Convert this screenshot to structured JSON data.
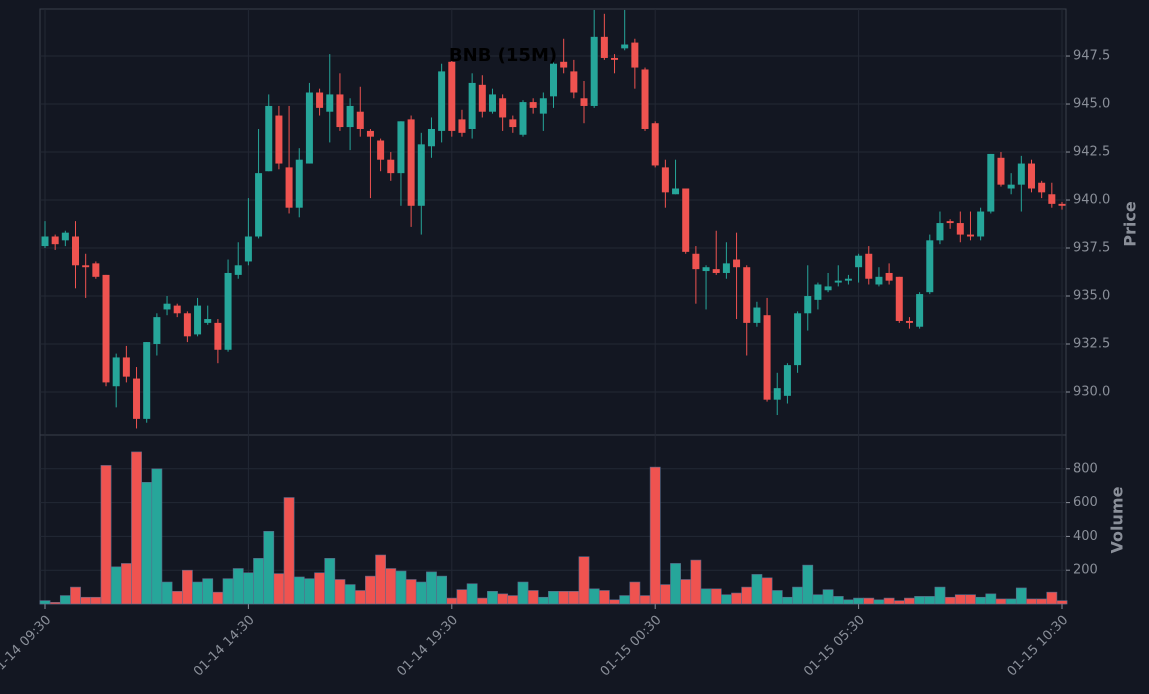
{
  "chart_data": {
    "type": "candlestick",
    "title": "BNB (15M)",
    "x": [
      "01-14 09:30",
      null,
      null,
      null,
      null,
      null,
      null,
      null,
      null,
      null,
      null,
      null,
      null,
      null,
      null,
      null,
      null,
      null,
      null,
      null,
      "01-14 14:30",
      null,
      null,
      null,
      null,
      null,
      null,
      null,
      null,
      null,
      null,
      null,
      null,
      null,
      null,
      null,
      null,
      null,
      null,
      null,
      "01-14 19:30",
      null,
      null,
      null,
      null,
      null,
      null,
      null,
      null,
      null,
      null,
      null,
      null,
      null,
      null,
      null,
      null,
      null,
      null,
      null,
      "01-15 00:30",
      null,
      null,
      null,
      null,
      null,
      null,
      null,
      null,
      null,
      null,
      null,
      null,
      null,
      null,
      null,
      null,
      null,
      null,
      null,
      "01-15 05:30",
      null,
      null,
      null,
      null,
      null,
      null,
      null,
      null,
      null,
      null,
      null,
      null,
      null,
      null,
      null,
      null,
      null,
      null,
      null,
      "01-15 10:30"
    ],
    "open": [
      937.6,
      938.1,
      937.9,
      938.1,
      936.6,
      936.7,
      936.1,
      930.3,
      931.8,
      930.7,
      928.6,
      932.5,
      934.3,
      934.5,
      934.1,
      933.0,
      933.6,
      933.6,
      932.2,
      936.1,
      936.8,
      938.1,
      941.5,
      944.4,
      941.7,
      939.6,
      941.9,
      945.6,
      944.6,
      945.5,
      943.8,
      944.6,
      943.6,
      943.1,
      942.1,
      941.4,
      944.2,
      939.7,
      942.8,
      943.6,
      947.2,
      944.2,
      943.7,
      946.0,
      944.6,
      945.3,
      944.2,
      943.4,
      945.1,
      944.5,
      945.4,
      947.2,
      946.7,
      945.3,
      944.9,
      948.5,
      947.4,
      947.9,
      948.2,
      946.8,
      944.0,
      941.7,
      940.3,
      940.6,
      937.2,
      936.3,
      936.4,
      936.2,
      936.9,
      936.5,
      933.6,
      934.0,
      929.6,
      929.8,
      931.4,
      934.1,
      934.8,
      935.3,
      935.7,
      935.8,
      936.5,
      937.2,
      935.6,
      936.2,
      936.0,
      933.7,
      933.4,
      935.2,
      937.9,
      938.9,
      938.8,
      938.2,
      938.1,
      939.4,
      942.2,
      940.6,
      940.8,
      941.9,
      940.9,
      940.3,
      939.8
    ],
    "high": [
      938.9,
      938.2,
      938.4,
      938.9,
      937.2,
      936.8,
      936.1,
      932.0,
      932.4,
      931.3,
      932.6,
      934.1,
      935.0,
      934.6,
      934.2,
      934.9,
      934.5,
      933.8,
      936.9,
      937.8,
      940.1,
      943.7,
      945.5,
      944.9,
      944.9,
      942.7,
      946.1,
      945.8,
      947.6,
      946.6,
      945.3,
      945.9,
      943.7,
      943.2,
      942.5,
      944.1,
      944.4,
      943.5,
      944.3,
      947.1,
      947.3,
      944.7,
      946.6,
      946.5,
      945.8,
      945.5,
      944.4,
      945.2,
      945.3,
      945.6,
      947.4,
      948.4,
      947.3,
      946.2,
      949.9,
      949.7,
      947.6,
      949.9,
      948.4,
      946.9,
      944.1,
      942.1,
      942.1,
      940.6,
      937.6,
      936.6,
      938.4,
      937.8,
      938.3,
      936.6,
      934.7,
      934.9,
      931.0,
      931.5,
      934.2,
      936.6,
      935.7,
      936.2,
      936.6,
      936.1,
      937.2,
      937.6,
      936.5,
      936.7,
      936.0,
      933.9,
      935.2,
      938.2,
      939.4,
      939.0,
      939.4,
      939.4,
      939.6,
      942.4,
      942.5,
      941.4,
      942.3,
      942.1,
      941.0,
      940.9,
      939.9
    ],
    "low": [
      937.5,
      937.4,
      937.6,
      935.4,
      934.9,
      935.9,
      930.3,
      929.2,
      930.5,
      928.1,
      928.4,
      931.9,
      934.0,
      933.9,
      932.6,
      932.9,
      933.5,
      931.5,
      932.1,
      935.9,
      936.6,
      938.0,
      941.5,
      941.6,
      939.3,
      939.1,
      941.9,
      944.4,
      943.0,
      943.6,
      942.6,
      943.3,
      940.1,
      941.5,
      941.0,
      939.7,
      938.6,
      938.2,
      942.2,
      943.0,
      943.3,
      943.3,
      943.2,
      944.3,
      944.5,
      943.6,
      943.5,
      943.3,
      944.5,
      943.6,
      944.8,
      946.6,
      945.3,
      944.0,
      944.8,
      947.3,
      946.6,
      947.8,
      945.8,
      943.6,
      941.7,
      939.6,
      940.3,
      937.2,
      934.6,
      934.3,
      936.1,
      935.9,
      933.8,
      931.9,
      933.4,
      929.5,
      928.8,
      929.4,
      931.0,
      933.2,
      934.3,
      935.2,
      935.5,
      935.6,
      935.7,
      935.6,
      935.5,
      935.6,
      933.6,
      933.3,
      933.3,
      935.1,
      937.7,
      938.5,
      937.8,
      937.9,
      937.9,
      939.3,
      940.7,
      940.3,
      939.4,
      940.4,
      940.1,
      939.6,
      939.5
    ],
    "close": [
      938.1,
      937.7,
      938.3,
      936.6,
      936.5,
      936.0,
      930.5,
      931.8,
      930.8,
      928.6,
      932.6,
      933.9,
      934.6,
      934.1,
      932.9,
      934.5,
      933.8,
      932.2,
      936.2,
      936.6,
      938.1,
      941.4,
      944.9,
      941.9,
      939.6,
      942.1,
      945.6,
      944.8,
      945.5,
      943.8,
      944.9,
      943.7,
      943.3,
      942.1,
      941.4,
      944.1,
      939.7,
      942.9,
      943.7,
      946.7,
      943.6,
      943.5,
      946.1,
      944.6,
      945.5,
      944.3,
      943.8,
      945.1,
      944.8,
      945.3,
      947.1,
      946.9,
      945.6,
      944.9,
      948.5,
      947.4,
      947.3,
      948.1,
      946.9,
      943.7,
      941.8,
      940.4,
      940.6,
      937.3,
      936.4,
      936.5,
      936.2,
      936.7,
      936.5,
      933.6,
      934.4,
      929.6,
      930.2,
      931.4,
      934.1,
      935.0,
      935.6,
      935.5,
      935.8,
      935.9,
      937.1,
      935.9,
      936.0,
      935.8,
      933.7,
      933.6,
      935.1,
      937.9,
      938.8,
      938.8,
      938.2,
      938.1,
      939.4,
      942.4,
      940.8,
      940.8,
      941.9,
      940.6,
      940.4,
      939.8,
      939.7
    ],
    "volume": [
      20,
      10,
      50,
      100,
      40,
      40,
      820,
      220,
      240,
      900,
      720,
      800,
      130,
      75,
      200,
      130,
      150,
      70,
      150,
      210,
      185,
      270,
      430,
      180,
      630,
      160,
      150,
      185,
      270,
      145,
      115,
      80,
      165,
      290,
      210,
      195,
      145,
      130,
      190,
      165,
      35,
      85,
      120,
      35,
      75,
      60,
      50,
      130,
      80,
      40,
      75,
      75,
      75,
      280,
      90,
      80,
      25,
      50,
      130,
      50,
      810,
      115,
      240,
      145,
      260,
      90,
      90,
      55,
      65,
      100,
      175,
      155,
      80,
      40,
      100,
      230,
      55,
      85,
      45,
      25,
      35,
      35,
      25,
      35,
      20,
      35,
      45,
      45,
      100,
      40,
      55,
      55,
      40,
      60,
      30,
      30,
      95,
      30,
      30,
      70,
      20
    ],
    "up_color": "#26a69a",
    "down_color": "#ef5350",
    "ylim": [
      927.76,
      949.95
    ],
    "yticks": [
      {
        "value": 930,
        "label": "930.0"
      },
      {
        "value": 932.5,
        "label": "932.5"
      },
      {
        "value": 935,
        "label": "935.0"
      },
      {
        "value": 937.5,
        "label": "937.5"
      },
      {
        "value": 940,
        "label": "940.0"
      },
      {
        "value": 942.5,
        "label": "942.5"
      },
      {
        "value": 945,
        "label": "945.0"
      },
      {
        "value": 947.5,
        "label": "947.5"
      }
    ],
    "ylabel": "Price",
    "y2lim": [
      0,
      1000
    ],
    "y2ticks": [
      200,
      400,
      600,
      800
    ],
    "y2label": "Volume",
    "grid": true
  }
}
